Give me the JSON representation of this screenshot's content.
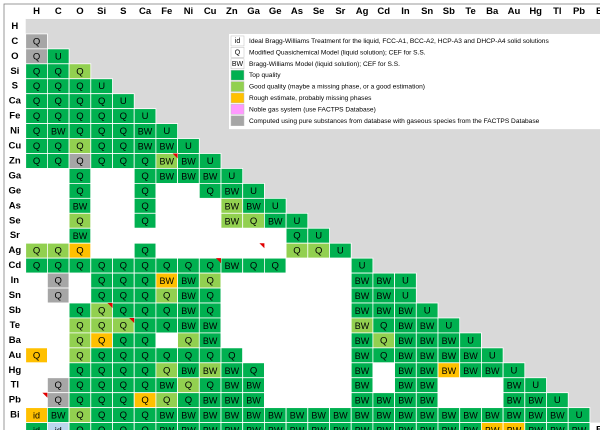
{
  "chart_data": {
    "type": "table",
    "elements": [
      "H",
      "C",
      "O",
      "Si",
      "S",
      "Ca",
      "Fe",
      "Ni",
      "Cu",
      "Zn",
      "Ga",
      "Ge",
      "As",
      "Se",
      "Sr",
      "Ag",
      "Cd",
      "In",
      "Sn",
      "Sb",
      "Te",
      "Ba",
      "Au",
      "Hg",
      "Tl",
      "Pb",
      "Bi"
    ],
    "colors": {
      "G": "#00b050",
      "L": "#92d050",
      "Y": "#ffc000",
      "P": "#ff99ff",
      "R": "#a6a6a6",
      "B": "#bdd7ee",
      "W": "#ffffff",
      "header": "#ffffff",
      "outside": "#d9d9d9"
    },
    "rows": [
      [],
      [
        "R:Q"
      ],
      [
        "R:Q",
        "G:U"
      ],
      [
        "G:Q",
        "G:Q",
        "L:Q"
      ],
      [
        "G:Q",
        "G:Q",
        "G:Q",
        "G:U"
      ],
      [
        "G:Q",
        "G:Q",
        "G:Q",
        "G:Q",
        "G:U"
      ],
      [
        "G:Q",
        "G:Q",
        "G:Q",
        "G:Q",
        "G:Q",
        "G:U"
      ],
      [
        "G:Q",
        "G:BW",
        "G:Q",
        "G:Q",
        "G:Q",
        "G:BW",
        "G:U"
      ],
      [
        "G:Q",
        "G:Q",
        "L:Q",
        "G:Q",
        "G:Q",
        "G:BW",
        "G:BW",
        "G:U"
      ],
      [
        "G:Q",
        "G:Q",
        "R:Q",
        "G:Q",
        "G:Q",
        "G:Q",
        "L:BW",
        "G:BW",
        "G:U"
      ],
      [
        "W:",
        "W:",
        "G:Q",
        "W:",
        "W:",
        "G:Q",
        "G:BW",
        "G:BW",
        "G:BW",
        "G:U"
      ],
      [
        "W:",
        "W:",
        "G:Q",
        "W:",
        "W:",
        "G:Q",
        "W:",
        "W:",
        "G:Q",
        "G:BW",
        "G:U"
      ],
      [
        "W:",
        "W:",
        "G:BW",
        "W:",
        "W:",
        "G:Q",
        "W:",
        "W:",
        "W:",
        "L:BW",
        "G:BW",
        "G:U"
      ],
      [
        "W:",
        "W:",
        "L:Q",
        "W:",
        "W:",
        "G:Q",
        "W:",
        "W:",
        "W:",
        "L:BW",
        "L:Q",
        "G:BW",
        "G:U"
      ],
      [
        "W:",
        "W:",
        "G:BW",
        "W:",
        "W:",
        "W:",
        "W:",
        "W:",
        "W:",
        "W:",
        "W:",
        "W:",
        "G:Q",
        "G:U"
      ],
      [
        "L:Q",
        "L:Q",
        "Y:Q",
        "W:",
        "W:",
        "G:Q",
        "W:",
        "W:",
        "W:",
        "W:",
        "W:",
        "W:",
        "L:Q",
        "L:Q",
        "G:U"
      ],
      [
        "G:Q",
        "G:Q",
        "G:Q",
        "G:Q",
        "G:Q",
        "G:Q",
        "G:Q",
        "G:Q",
        "G:Q",
        "G:BW",
        "G:Q",
        "G:Q",
        "W:",
        "W:",
        "W:",
        "G:U"
      ],
      [
        "W:",
        "R:Q",
        "W:",
        "G:Q",
        "G:Q",
        "G:Q",
        "Y:BW",
        "G:BW",
        "L:Q",
        "W:",
        "W:",
        "W:",
        "W:",
        "W:",
        "W:",
        "G:BW",
        "G:BW",
        "G:U"
      ],
      [
        "W:",
        "R:Q",
        "W:",
        "G:Q",
        "G:Q",
        "G:Q",
        "L:Q",
        "G:BW",
        "G:Q",
        "W:",
        "W:",
        "W:",
        "W:",
        "W:",
        "W:",
        "G:BW",
        "G:BW",
        "G:U"
      ],
      [
        "W:",
        "W:",
        "G:Q",
        "L:Q",
        "G:Q",
        "G:Q",
        "G:Q",
        "G:BW",
        "G:Q",
        "W:",
        "W:",
        "W:",
        "W:",
        "W:",
        "W:",
        "G:BW",
        "G:BW",
        "G:BW",
        "G:U"
      ],
      [
        "W:",
        "W:",
        "L:Q",
        "L:Q",
        "L:Q",
        "G:Q",
        "G:Q",
        "G:BW",
        "G:BW",
        "W:",
        "W:",
        "W:",
        "W:",
        "W:",
        "W:",
        "L:BW",
        "G:Q",
        "G:BW",
        "G:BW",
        "G:U"
      ],
      [
        "W:",
        "W:",
        "L:Q",
        "Y:Q",
        "G:Q",
        "G:Q",
        "W:",
        "L:Q",
        "G:BW",
        "W:",
        "W:",
        "W:",
        "W:",
        "W:",
        "W:",
        "G:BW",
        "L:Q",
        "G:BW",
        "G:BW",
        "G:BW",
        "G:U"
      ],
      [
        "Y:Q",
        "W:",
        "L:Q",
        "G:Q",
        "G:Q",
        "G:Q",
        "G:Q",
        "G:Q",
        "G:Q",
        "G:Q",
        "W:",
        "W:",
        "W:",
        "W:",
        "W:",
        "G:BW",
        "G:Q",
        "G:BW",
        "G:BW",
        "G:BW",
        "G:BW",
        "G:U"
      ],
      [
        "W:",
        "W:",
        "G:Q",
        "G:Q",
        "G:Q",
        "G:Q",
        "L:Q",
        "G:BW",
        "L:BW",
        "G:BW",
        "G:Q",
        "W:",
        "W:",
        "W:",
        "W:",
        "G:BW",
        "W:",
        "G:BW",
        "G:BW",
        "Y:BW",
        "G:BW",
        "G:BW",
        "G:U"
      ],
      [
        "W:",
        "R:Q",
        "G:Q",
        "G:Q",
        "G:Q",
        "G:Q",
        "G:BW",
        "L:Q",
        "G:Q",
        "G:BW",
        "G:BW",
        "W:",
        "W:",
        "W:",
        "W:",
        "G:BW",
        "W:",
        "G:BW",
        "G:BW",
        "W:",
        "W:",
        "W:",
        "G:BW",
        "G:U"
      ],
      [
        "W:",
        "R:Q",
        "G:Q",
        "G:Q",
        "G:Q",
        "Y:Q",
        "L:Q",
        "G:Q",
        "G:BW",
        "G:BW",
        "G:BW",
        "W:",
        "W:",
        "W:",
        "W:",
        "G:BW",
        "G:BW",
        "G:BW",
        "G:BW",
        "W:",
        "W:",
        "W:",
        "G:BW",
        "G:BW",
        "G:U"
      ],
      [
        "Y:id",
        "G:BW",
        "L:Q",
        "G:Q",
        "G:Q",
        "G:Q",
        "G:BW",
        "G:BW",
        "G:BW",
        "G:BW",
        "G:BW",
        "G:BW",
        "G:BW",
        "G:BW",
        "G:BW",
        "G:BW",
        "G:BW",
        "G:BW",
        "G:BW",
        "G:BW",
        "G:BW",
        "G:BW",
        "G:BW",
        "G:BW",
        "G:BW",
        "G:U"
      ],
      [
        "G:id",
        "B:id",
        "G:Q",
        "G:Q",
        "G:Q",
        "G:Q",
        "G:BW",
        "G:BW",
        "G:BW",
        "G:BW",
        "G:BW",
        "G:BW",
        "G:BW",
        "G:BW",
        "G:BW",
        "G:BW",
        "G:BW",
        "G:BW",
        "G:BW",
        "G:BW",
        "G:BW",
        "Y:BW",
        "Y:BW",
        "G:BW",
        "G:BW",
        "G:BW"
      ]
    ],
    "legend": [
      {
        "swatch": "W",
        "code": "id",
        "label": "Ideal Bragg-Williams Treatment for the liquid, FCC-A1, BCC-A2, HCP-A3 and DHCP-A4 solid solutions"
      },
      {
        "swatch": "W",
        "code": "Q",
        "label": "Modified Quasichemical Model (liquid solution); CEF for S.S."
      },
      {
        "swatch": "W",
        "code": "BW",
        "label": "Bragg-Williams Model (liquid solution); CEF for S.S."
      },
      {
        "swatch": "G",
        "code": "",
        "label": "Top quality"
      },
      {
        "swatch": "L",
        "code": "",
        "label": "Good quality (maybe a missing phase, or a good estimation)"
      },
      {
        "swatch": "Y",
        "code": "",
        "label": "Rough estimate, probably missing phases"
      },
      {
        "swatch": "P",
        "code": "",
        "label": "Noble gas system (use FACTPS Database)"
      },
      {
        "swatch": "R",
        "code": "",
        "label": "Computed using pure substances from database with gaseous species from the FACTPS Database"
      }
    ],
    "red_marks": [
      [
        "Zn",
        "Fe"
      ],
      [
        "Ag",
        "Ga"
      ],
      [
        "Cd",
        "Cu"
      ],
      [
        "Sb",
        "Si"
      ],
      [
        "Te",
        "S"
      ],
      [
        "Pb",
        "H"
      ]
    ]
  }
}
